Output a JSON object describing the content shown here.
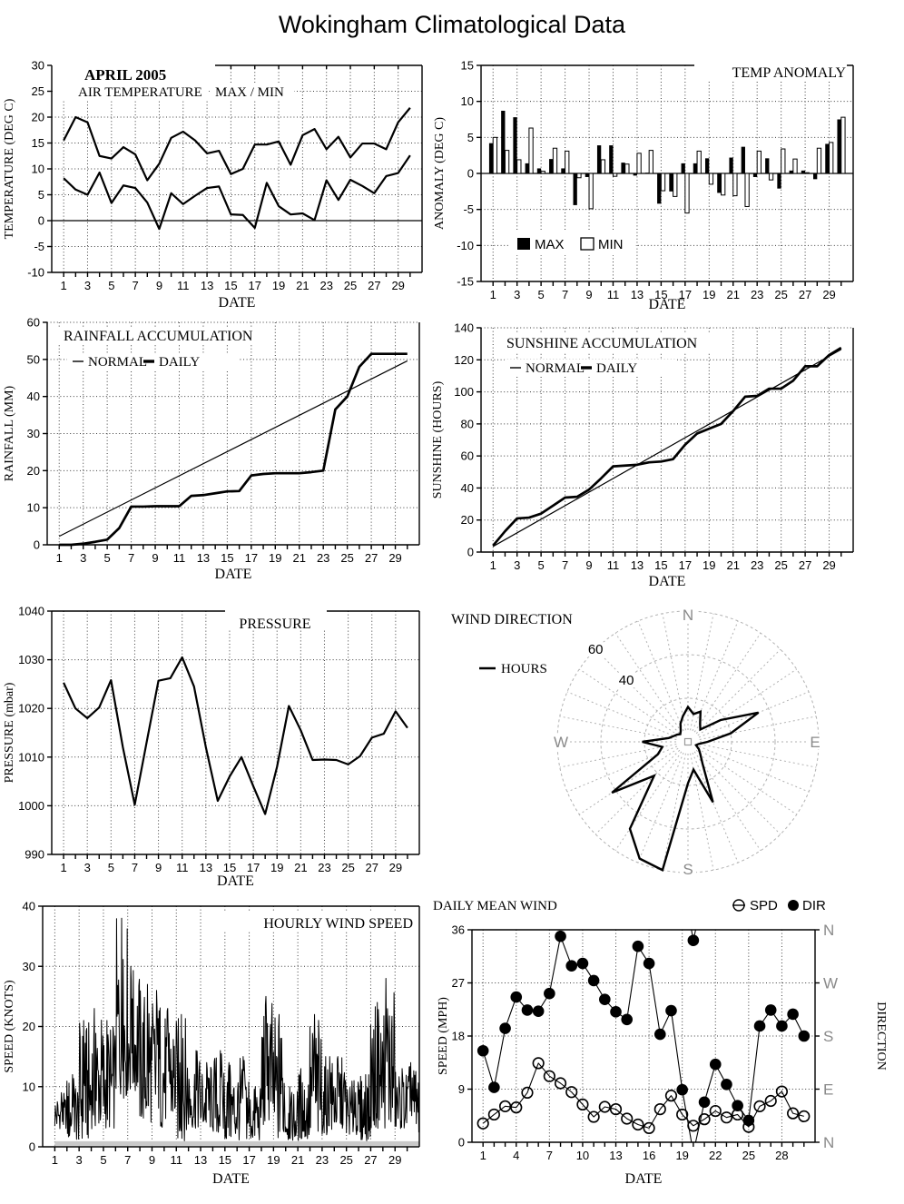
{
  "page_title": "Wokingham Climatological Data",
  "chart_data": [
    {
      "id": "air-temperature",
      "type": "line",
      "title": "APRIL 2005",
      "subtitle": "AIR TEMPERATURE",
      "annotation": "MAX / MIN",
      "xlabel": "DATE",
      "ylabel": "TEMPERATURE (DEG C)",
      "ylim": [
        -10,
        30
      ],
      "ystep": 5,
      "xticks": [
        1,
        3,
        5,
        7,
        9,
        11,
        13,
        15,
        17,
        19,
        21,
        23,
        25,
        27,
        29
      ],
      "series": [
        {
          "name": "MAX",
          "values": [
            15.5,
            20,
            19,
            12.5,
            12,
            14.2,
            12.8,
            7.8,
            11,
            16,
            17.2,
            15.5,
            13,
            13.5,
            9,
            10,
            14.7,
            14.7,
            15.3,
            10.8,
            16.5,
            17.7,
            13.8,
            16.2,
            12.2,
            14.9,
            14.9,
            13.8,
            19,
            21.8
          ]
        },
        {
          "name": "MIN",
          "values": [
            8.2,
            6,
            5,
            9.3,
            3.4,
            6.8,
            6.3,
            3.5,
            -1.6,
            5.3,
            3.2,
            4.8,
            6.3,
            6.6,
            1.2,
            1.1,
            -1.4,
            7.3,
            2.8,
            1.2,
            1.4,
            0.1,
            7.8,
            4,
            7.9,
            6.7,
            5.3,
            8.6,
            9.2,
            12.6
          ]
        }
      ]
    },
    {
      "id": "temp-anomaly",
      "type": "bar",
      "title": "TEMP ANOMALY",
      "xlabel": "DATE",
      "ylabel": "ANOMALY (DEG C)",
      "ylim": [
        -15,
        15
      ],
      "ystep": 5,
      "xticks": [
        1,
        3,
        5,
        7,
        9,
        11,
        13,
        15,
        17,
        19,
        21,
        23,
        25,
        27,
        29
      ],
      "legend": [
        "MAX",
        "MIN"
      ],
      "series": [
        {
          "name": "MAX",
          "values": [
            4.2,
            8.7,
            7.8,
            1.4,
            0.7,
            2,
            0.7,
            -4.4,
            -0.5,
            3.9,
            3.9,
            1.5,
            -0.3,
            0.1,
            -4.2,
            -2.5,
            1.4,
            1.4,
            2.1,
            -2.7,
            2.2,
            3.7,
            -0.5,
            2.1,
            -2.1,
            0.4,
            0.4,
            -0.8,
            4.1,
            7.5
          ]
        },
        {
          "name": "MIN",
          "values": [
            5,
            3.2,
            1.9,
            6.3,
            0.3,
            3.5,
            3.1,
            -0.6,
            -4.9,
            1.9,
            -0.4,
            1.3,
            2.8,
            3.2,
            -2.4,
            -3.2,
            -5.5,
            3.1,
            -1.5,
            -3,
            -3.1,
            -4.6,
            3.1,
            -0.9,
            3.4,
            2,
            0.1,
            3.5,
            4.3,
            7.8
          ]
        }
      ]
    },
    {
      "id": "rainfall-accumulation",
      "type": "line",
      "title": "RAINFALL ACCUMULATION",
      "legend": [
        "NORMAL",
        "DAILY"
      ],
      "xlabel": "DATE",
      "ylabel": "RAINFALL (MM)",
      "ylim": [
        0,
        60
      ],
      "ystep": 10,
      "xticks": [
        1,
        3,
        5,
        7,
        9,
        11,
        13,
        15,
        17,
        19,
        21,
        23,
        25,
        27,
        29
      ],
      "normal": {
        "start": 2.3,
        "end": 49.6
      },
      "daily": [
        0,
        0,
        0.3,
        0.8,
        1.4,
        4.5,
        10.3,
        10.3,
        10.4,
        10.4,
        10.4,
        13.2,
        13.4,
        13.9,
        14.4,
        14.5,
        18.7,
        19.1,
        19.3,
        19.3,
        19.3,
        19.6,
        20,
        36.5,
        40,
        48,
        51.5,
        51.5,
        51.5,
        51.5
      ]
    },
    {
      "id": "sunshine-accumulation",
      "type": "line",
      "title": "SUNSHINE ACCUMULATION",
      "legend": [
        "NORMAL",
        "DAILY"
      ],
      "xlabel": "DATE",
      "ylabel": "SUNSHINE (HOURS)",
      "ylim": [
        0,
        140
      ],
      "ystep": 20,
      "xticks": [
        1,
        3,
        5,
        7,
        9,
        11,
        13,
        15,
        17,
        19,
        21,
        23,
        25,
        27,
        29
      ],
      "normal": {
        "start": 3.5,
        "end": 126.5
      },
      "daily": [
        4,
        13,
        21,
        21.5,
        24,
        29,
        34,
        34.5,
        39,
        46,
        53.5,
        54,
        54.5,
        56,
        56.5,
        58,
        67,
        74,
        77,
        80,
        88,
        97,
        97.5,
        102,
        102,
        107,
        116,
        116,
        123,
        127.5
      ]
    },
    {
      "id": "pressure",
      "type": "line",
      "title": "PRESSURE",
      "xlabel": "DATE",
      "ylabel": "PRESSURE (mbar)",
      "ylim": [
        990,
        1040
      ],
      "ystep": 10,
      "xticks": [
        1,
        3,
        5,
        7,
        9,
        11,
        13,
        15,
        17,
        19,
        21,
        23,
        25,
        27,
        29
      ],
      "values": [
        1025.3,
        1020,
        1018,
        1020.2,
        1025.8,
        1012,
        1000.2,
        1013,
        1025.7,
        1026.2,
        1030.5,
        1024.5,
        1012,
        1001,
        1006,
        1010,
        1004,
        998.3,
        1008,
        1020.5,
        1015.5,
        1009.4,
        1009.5,
        1009.4,
        1008.5,
        1010.2,
        1014,
        1014.8,
        1019.4,
        1016
      ]
    },
    {
      "id": "wind-direction",
      "type": "polar",
      "title": "WIND DIRECTION",
      "legend": "HOURS",
      "compass": [
        "N",
        "E",
        "S",
        "W"
      ],
      "rings": [
        20,
        40,
        60
      ],
      "ring_labels_shown": [
        "60",
        "40"
      ],
      "sector_step_deg": 11.25,
      "hours": [
        16,
        13,
        15,
        10,
        8,
        18,
        35,
        20,
        9,
        5,
        4,
        6,
        8,
        12,
        30,
        13,
        19,
        60,
        58,
        48,
        22,
        42,
        15,
        12,
        21,
        9,
        7,
        6,
        5,
        6,
        9,
        12
      ]
    },
    {
      "id": "hourly-wind-speed",
      "type": "line",
      "title": "HOURLY WIND SPEED",
      "xlabel": "DATE",
      "ylabel": "SPEED (KNOTS)",
      "ylim": [
        0,
        40
      ],
      "ystep": 10,
      "xticks": [
        1,
        3,
        5,
        7,
        9,
        11,
        13,
        15,
        17,
        19,
        21,
        23,
        25,
        27,
        29
      ],
      "daily_max": [
        9,
        12,
        21,
        23,
        21,
        38,
        30,
        27,
        26,
        23,
        22,
        16,
        14,
        16,
        14,
        15,
        10,
        25,
        22,
        10,
        13,
        22,
        15,
        15,
        11,
        12,
        24,
        28,
        13,
        14
      ],
      "daily_min": [
        3,
        1,
        1,
        3,
        3,
        8,
        9,
        4,
        3,
        4,
        1,
        3,
        3,
        2,
        1,
        1,
        1,
        3,
        1,
        1,
        1,
        1,
        2,
        3,
        2,
        1,
        3,
        3,
        3,
        2
      ]
    },
    {
      "id": "daily-mean-wind",
      "type": "scatter",
      "title": "DAILY MEAN WIND",
      "legend": [
        "SPD",
        "DIR"
      ],
      "xlabel": "DATE",
      "ylabel": "SPEED (MPH)",
      "right_label": "DIRECTION",
      "right_ticks": [
        "N",
        "W",
        "S",
        "E",
        "N"
      ],
      "ylim": [
        0,
        36
      ],
      "ystep": 9,
      "xticks": [
        1,
        4,
        7,
        10,
        13,
        16,
        19,
        22,
        25,
        28
      ],
      "spd": [
        3.2,
        4.7,
        6.1,
        5.9,
        8.4,
        13.4,
        11.2,
        10,
        8.5,
        6.4,
        4.3,
        6,
        5.6,
        4,
        3,
        2.4,
        5.6,
        7.9,
        4.7,
        2.8,
        3.9,
        5.3,
        4.2,
        4.7,
        2.6,
        6.1,
        7,
        8.6,
        4.9,
        4.4
      ],
      "dir": [
        15.5,
        9.3,
        19.3,
        24.6,
        22.4,
        22.2,
        25.2,
        34.9,
        29.9,
        30.3,
        27.4,
        24.2,
        22.1,
        20.8,
        33.2,
        30.3,
        18.3,
        22.3,
        8.9,
        34.2,
        6.8,
        13.2,
        9.8,
        6.2,
        3.7,
        19.7,
        22.4,
        19.7,
        21.7,
        18
      ]
    }
  ]
}
